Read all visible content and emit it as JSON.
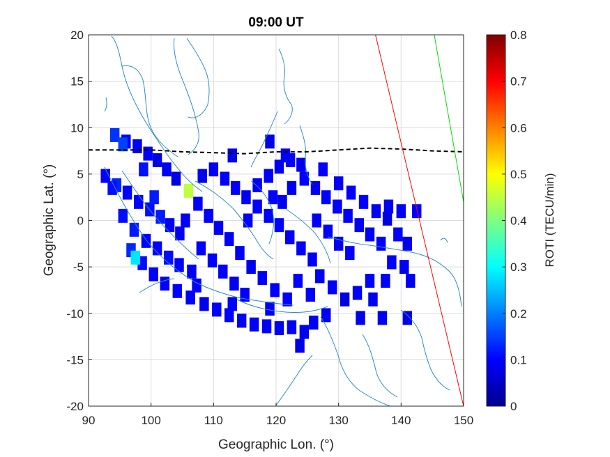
{
  "chart_data": {
    "type": "heatmap",
    "title": "09:00 UT",
    "xlabel": "Geographic Lon. (°)",
    "ylabel": "Geographic Lat. (°)",
    "xlim": [
      90,
      150
    ],
    "ylim": [
      -20,
      20
    ],
    "xticks": [
      "90",
      "100",
      "110",
      "120",
      "130",
      "140",
      "150"
    ],
    "yticks": [
      "20",
      "15",
      "10",
      "5",
      "0",
      "-5",
      "-10",
      "-15",
      "-20"
    ],
    "grid": true,
    "colorbar": {
      "label": "ROTI (TECU/min)",
      "range": [
        0,
        0.8
      ],
      "ticks": [
        "0.8",
        "0.7",
        "0.6",
        "0.5",
        "0.4",
        "0.3",
        "0.2",
        "0.1",
        "0"
      ]
    },
    "roti_cell_size_deg": 1.5,
    "roti_cells": [
      [
        94.2,
        9.2,
        0.14
      ],
      [
        96.0,
        8.5,
        0.1
      ],
      [
        97.8,
        8.0,
        0.09
      ],
      [
        99.5,
        7.2,
        0.1
      ],
      [
        101.0,
        6.5,
        0.08
      ],
      [
        102.5,
        5.5,
        0.09
      ],
      [
        104.0,
        4.5,
        0.08
      ],
      [
        92.7,
        4.8,
        0.1
      ],
      [
        94.5,
        3.8,
        0.13
      ],
      [
        96.2,
        3.0,
        0.1
      ],
      [
        98.0,
        2.0,
        0.1
      ],
      [
        99.8,
        1.2,
        0.11
      ],
      [
        101.5,
        0.4,
        0.12
      ],
      [
        103.0,
        -0.5,
        0.1
      ],
      [
        104.6,
        -1.4,
        0.09
      ],
      [
        95.5,
        0.5,
        0.11
      ],
      [
        97.3,
        -1.0,
        0.12
      ],
      [
        99.2,
        -2.2,
        0.1
      ],
      [
        101.0,
        -3.0,
        0.1
      ],
      [
        102.8,
        -4.0,
        0.11
      ],
      [
        104.5,
        -4.8,
        0.1
      ],
      [
        106.5,
        -5.5,
        0.09
      ],
      [
        96.8,
        -3.2,
        0.13
      ],
      [
        98.6,
        -4.6,
        0.11
      ],
      [
        100.4,
        -5.8,
        0.1
      ],
      [
        102.2,
        -6.8,
        0.1
      ],
      [
        104.2,
        -7.6,
        0.1
      ],
      [
        106.3,
        -8.3,
        0.1
      ],
      [
        108.5,
        -9.0,
        0.09
      ],
      [
        110.5,
        -9.6,
        0.1
      ],
      [
        112.5,
        -10.2,
        0.1
      ],
      [
        114.5,
        -10.8,
        0.09
      ],
      [
        116.5,
        -11.2,
        0.1
      ],
      [
        118.5,
        -11.4,
        0.1
      ],
      [
        120.5,
        -11.6,
        0.09
      ],
      [
        122.5,
        -11.5,
        0.1
      ],
      [
        124.5,
        -12.0,
        0.09
      ],
      [
        123.8,
        -13.5,
        0.08
      ],
      [
        126.0,
        -11.0,
        0.1
      ],
      [
        128.0,
        -10.2,
        0.09
      ],
      [
        106.0,
        3.2,
        0.45
      ],
      [
        107.5,
        1.8,
        0.1
      ],
      [
        109.2,
        0.5,
        0.1
      ],
      [
        110.8,
        -0.8,
        0.09
      ],
      [
        112.5,
        -2.0,
        0.1
      ],
      [
        114.2,
        -3.5,
        0.1
      ],
      [
        116.0,
        -5.0,
        0.09
      ],
      [
        117.8,
        -6.2,
        0.1
      ],
      [
        119.8,
        -7.5,
        0.1
      ],
      [
        121.8,
        -8.5,
        0.1
      ],
      [
        110.0,
        5.5,
        0.09
      ],
      [
        111.8,
        4.5,
        0.1
      ],
      [
        113.5,
        3.5,
        0.1
      ],
      [
        115.2,
        2.5,
        0.09
      ],
      [
        117.0,
        1.5,
        0.1
      ],
      [
        118.8,
        0.5,
        0.1
      ],
      [
        120.5,
        -0.5,
        0.1
      ],
      [
        122.2,
        -1.8,
        0.09
      ],
      [
        124.0,
        -3.0,
        0.1
      ],
      [
        125.8,
        -4.2,
        0.1
      ],
      [
        108.0,
        -3.0,
        0.1
      ],
      [
        109.8,
        -4.3,
        0.1
      ],
      [
        111.5,
        -5.5,
        0.1
      ],
      [
        113.3,
        -6.8,
        0.09
      ],
      [
        115.0,
        -8.0,
        0.1
      ],
      [
        117.0,
        3.8,
        0.09
      ],
      [
        118.8,
        4.8,
        0.1
      ],
      [
        120.5,
        5.8,
        0.09
      ],
      [
        122.3,
        6.5,
        0.1
      ],
      [
        124.0,
        6.0,
        0.09
      ],
      [
        119.0,
        8.5,
        0.08
      ],
      [
        121.5,
        7.0,
        0.1
      ],
      [
        124.5,
        4.5,
        0.1
      ],
      [
        126.3,
        3.5,
        0.09
      ],
      [
        128.0,
        2.5,
        0.1
      ],
      [
        129.8,
        1.5,
        0.1
      ],
      [
        131.5,
        0.5,
        0.1
      ],
      [
        133.3,
        -0.5,
        0.09
      ],
      [
        135.0,
        -1.5,
        0.1
      ],
      [
        136.8,
        -2.5,
        0.1
      ],
      [
        130.0,
        4.0,
        0.09
      ],
      [
        132.0,
        3.0,
        0.1
      ],
      [
        134.0,
        2.0,
        0.1
      ],
      [
        136.0,
        1.0,
        0.09
      ],
      [
        137.8,
        0.2,
        0.08
      ],
      [
        126.5,
        0.0,
        0.1
      ],
      [
        128.3,
        -1.2,
        0.1
      ],
      [
        130.0,
        -2.5,
        0.09
      ],
      [
        131.8,
        -3.5,
        0.1
      ],
      [
        127.0,
        -6.0,
        0.09
      ],
      [
        129.0,
        -7.2,
        0.1
      ],
      [
        131.0,
        -8.5,
        0.08
      ],
      [
        133.0,
        -7.8,
        0.09
      ],
      [
        135.0,
        -6.5,
        0.1
      ],
      [
        122.5,
        3.5,
        0.09
      ],
      [
        119.5,
        2.5,
        0.1
      ],
      [
        113.0,
        7.0,
        0.08
      ],
      [
        108.2,
        4.8,
        0.09
      ],
      [
        105.5,
        0.0,
        0.1
      ],
      [
        107.3,
        -7.0,
        0.1
      ],
      [
        113.0,
        -9.0,
        0.1
      ],
      [
        119.0,
        -9.5,
        0.09
      ],
      [
        115.5,
        0.0,
        0.1
      ],
      [
        121.0,
        2.0,
        0.09
      ],
      [
        127.5,
        5.5,
        0.1
      ],
      [
        138.0,
        1.5,
        0.09
      ],
      [
        140.0,
        1.0,
        0.09
      ],
      [
        139.5,
        -1.5,
        0.1
      ],
      [
        141.0,
        -2.5,
        0.09
      ],
      [
        142.5,
        1.0,
        0.1
      ],
      [
        138.5,
        -4.5,
        0.1
      ],
      [
        140.5,
        -5.0,
        0.09
      ],
      [
        137.5,
        -6.5,
        0.1
      ],
      [
        141.5,
        -6.5,
        0.09
      ],
      [
        133.5,
        -10.5,
        0.09
      ],
      [
        137.0,
        -10.5,
        0.09
      ],
      [
        141.0,
        -10.5,
        0.08
      ],
      [
        135.5,
        -8.5,
        0.09
      ],
      [
        125.5,
        -8.0,
        0.1
      ],
      [
        123.5,
        -6.5,
        0.1
      ],
      [
        97.5,
        -4.0,
        0.28
      ],
      [
        95.5,
        8.2,
        0.15
      ],
      [
        93.8,
        3.5,
        0.11
      ],
      [
        100.5,
        2.5,
        0.12
      ],
      [
        98.8,
        5.5,
        0.11
      ]
    ],
    "lines": [
      {
        "color": "#000000",
        "style": "dashed",
        "points": [
          [
            90,
            7.6
          ],
          [
            95,
            7.6
          ],
          [
            100,
            7.6
          ],
          [
            105,
            7.4
          ],
          [
            110,
            7.3
          ],
          [
            115,
            7.2
          ],
          [
            120,
            7.4
          ],
          [
            125,
            7.4
          ],
          [
            130,
            7.6
          ],
          [
            135,
            7.8
          ],
          [
            140,
            7.7
          ],
          [
            145,
            7.5
          ],
          [
            150,
            7.4
          ]
        ]
      },
      {
        "color": "#ff0000",
        "style": "solid",
        "points": [
          [
            135.9,
            20
          ],
          [
            150,
            -20
          ]
        ]
      },
      {
        "color": "#00dd00",
        "style": "solid",
        "points": [
          [
            145.3,
            20
          ],
          [
            150,
            2
          ]
        ]
      }
    ],
    "coastline_color": "#2f8cc6"
  }
}
